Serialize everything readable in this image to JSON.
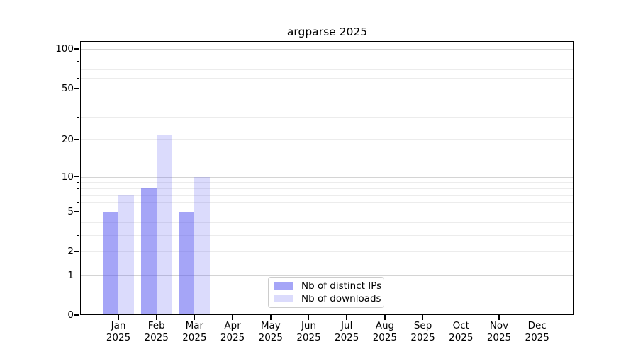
{
  "chart_data": {
    "type": "bar",
    "title": "argparse 2025",
    "categories": [
      {
        "month": "Jan",
        "year": "2025"
      },
      {
        "month": "Feb",
        "year": "2025"
      },
      {
        "month": "Mar",
        "year": "2025"
      },
      {
        "month": "Apr",
        "year": "2025"
      },
      {
        "month": "May",
        "year": "2025"
      },
      {
        "month": "Jun",
        "year": "2025"
      },
      {
        "month": "Jul",
        "year": "2025"
      },
      {
        "month": "Aug",
        "year": "2025"
      },
      {
        "month": "Sep",
        "year": "2025"
      },
      {
        "month": "Oct",
        "year": "2025"
      },
      {
        "month": "Nov",
        "year": "2025"
      },
      {
        "month": "Dec",
        "year": "2025"
      }
    ],
    "series": [
      {
        "name": "Nb of distinct IPs",
        "color": "rgba(85,85,240,0.53)",
        "color_hex": "#a9a9f6",
        "values": [
          5,
          8,
          5,
          0,
          0,
          0,
          0,
          0,
          0,
          0,
          0,
          0
        ]
      },
      {
        "name": "Nb of downloads",
        "color": "rgba(85,85,240,0.21)",
        "color_hex": "#dcdcf9",
        "values": [
          7,
          22,
          10,
          0,
          0,
          0,
          0,
          0,
          0,
          0,
          0,
          0
        ]
      }
    ],
    "yscale": "log1p",
    "ytick_values": [
      0,
      1,
      2,
      5,
      10,
      20,
      50,
      100
    ],
    "ytick_labels": [
      "0",
      "1",
      "2",
      "5",
      "10",
      "20",
      "50",
      "100"
    ],
    "minor_tick_values": [
      3,
      4,
      6,
      7,
      8,
      9,
      30,
      40,
      60,
      70,
      80,
      90
    ],
    "grid": true,
    "legend_position": "lower center inside",
    "axis_color": "#000000",
    "grid_major_color": "#d4d4d4",
    "grid_minor_color": "#ececec"
  }
}
